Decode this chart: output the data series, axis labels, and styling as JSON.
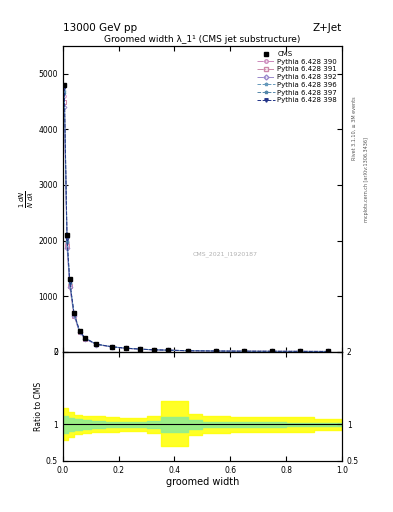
{
  "title": "13000 GeV pp",
  "title_right": "Z+Jet",
  "plot_title": "Groomed width λ_1¹ (CMS jet substructure)",
  "xlabel": "groomed width",
  "right_label": "Rivet 3.1.10, ≥ 3M events",
  "right_label2": "mcplots.cern.ch [arXiv:1306.3436]",
  "watermark": "CMS_2021_I1920187",
  "x_values": [
    0.005,
    0.015,
    0.025,
    0.04,
    0.06,
    0.08,
    0.12,
    0.175,
    0.225,
    0.275,
    0.325,
    0.375,
    0.45,
    0.55,
    0.65,
    0.75,
    0.85,
    0.95
  ],
  "cms_y": [
    4800,
    2100,
    1300,
    700,
    380,
    250,
    140,
    90,
    65,
    48,
    35,
    28,
    18,
    12,
    9,
    7,
    5.5,
    4
  ],
  "pythia390_y": [
    4600,
    1950,
    1200,
    660,
    360,
    235,
    132,
    86,
    62,
    46,
    33,
    27,
    17,
    11.5,
    8.5,
    6.5,
    5.2,
    3.8
  ],
  "pythia391_y": [
    4500,
    1900,
    1180,
    650,
    355,
    232,
    130,
    85,
    61,
    45,
    32,
    26,
    17,
    11,
    8.3,
    6.3,
    5.0,
    3.7
  ],
  "pythia392_y": [
    4400,
    1870,
    1160,
    640,
    350,
    228,
    128,
    84,
    60,
    44,
    32,
    26,
    16.5,
    11,
    8.2,
    6.2,
    5.0,
    3.7
  ],
  "pythia396_y": [
    4700,
    2000,
    1240,
    680,
    370,
    240,
    135,
    88,
    63,
    47,
    34,
    27,
    17.5,
    11.5,
    8.5,
    6.5,
    5.2,
    3.8
  ],
  "pythia397_y": [
    4650,
    1980,
    1230,
    675,
    368,
    238,
    134,
    87,
    63,
    46,
    34,
    27,
    17.5,
    11.5,
    8.5,
    6.5,
    5.2,
    3.8
  ],
  "pythia398_y": [
    4750,
    2020,
    1250,
    690,
    375,
    242,
    136,
    89,
    64,
    47,
    34,
    27,
    17.5,
    11.5,
    8.5,
    6.5,
    5.2,
    3.8
  ],
  "ylim": [
    0,
    5500
  ],
  "yticks": [
    0,
    1000,
    2000,
    3000,
    4000,
    5000
  ],
  "xlim": [
    0,
    1
  ],
  "ratio_ylim": [
    0.5,
    2.0
  ],
  "ratio_yticks": [
    0.5,
    1.0,
    2.0
  ],
  "series_info": [
    {
      "label": "Pythia 6.428 390",
      "color": "#cc88bb",
      "marker": "o",
      "linestyle": "-."
    },
    {
      "label": "Pythia 6.428 391",
      "color": "#cc88aa",
      "marker": "s",
      "linestyle": "-."
    },
    {
      "label": "Pythia 6.428 392",
      "color": "#9988cc",
      "marker": "D",
      "linestyle": "-."
    },
    {
      "label": "Pythia 6.428 396",
      "color": "#6699bb",
      "marker": "*",
      "linestyle": "--"
    },
    {
      "label": "Pythia 6.428 397",
      "color": "#5588aa",
      "marker": "*",
      "linestyle": "--"
    },
    {
      "label": "Pythia 6.428 398",
      "color": "#223388",
      "marker": "v",
      "linestyle": "--"
    }
  ],
  "ratio_yellow_band_x": [
    0.0,
    0.02,
    0.04,
    0.07,
    0.1,
    0.15,
    0.2,
    0.3,
    0.35,
    0.45,
    0.5,
    0.6,
    0.7,
    0.8,
    0.9,
    1.0
  ],
  "ratio_yellow_lower": [
    0.78,
    0.83,
    0.87,
    0.88,
    0.89,
    0.9,
    0.91,
    0.88,
    0.7,
    0.86,
    0.88,
    0.9,
    0.9,
    0.9,
    0.92,
    0.92
  ],
  "ratio_yellow_upper": [
    1.22,
    1.17,
    1.13,
    1.12,
    1.11,
    1.1,
    1.09,
    1.12,
    1.32,
    1.14,
    1.12,
    1.1,
    1.1,
    1.1,
    1.08,
    1.08
  ],
  "ratio_green_lower": [
    0.88,
    0.91,
    0.93,
    0.94,
    0.95,
    0.96,
    0.96,
    0.95,
    0.9,
    0.94,
    0.96,
    0.97,
    0.97,
    0.98,
    0.98,
    0.98
  ],
  "ratio_green_upper": [
    1.12,
    1.09,
    1.07,
    1.06,
    1.05,
    1.04,
    1.04,
    1.05,
    1.1,
    1.06,
    1.04,
    1.03,
    1.03,
    1.02,
    1.02,
    1.02
  ]
}
